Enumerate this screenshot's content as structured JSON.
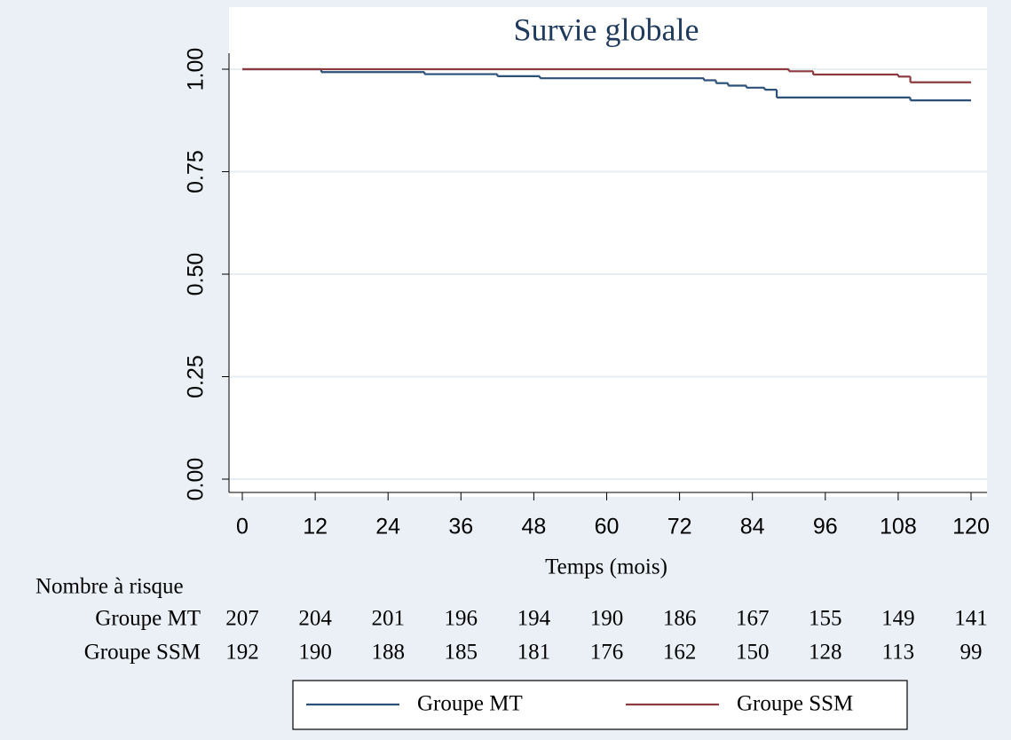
{
  "chart_data": {
    "type": "line",
    "step": true,
    "title": "Survie globale",
    "xlabel": "Temps (mois)",
    "xlim": [
      0,
      120
    ],
    "xticks": [
      0,
      12,
      24,
      36,
      48,
      60,
      72,
      84,
      96,
      108,
      120
    ],
    "ylim": [
      0,
      1
    ],
    "yticks": [
      {
        "value": 0,
        "label": "0.00"
      },
      {
        "value": 0.25,
        "label": "0.25"
      },
      {
        "value": 0.5,
        "label": "0.50"
      },
      {
        "value": 0.75,
        "label": "0.75"
      },
      {
        "value": 1,
        "label": "1.00"
      }
    ],
    "grid": true,
    "series": [
      {
        "name": "Groupe MT",
        "color": "#2c5078",
        "x": [
          0,
          13,
          30,
          42,
          49,
          76,
          78,
          80,
          83,
          86,
          88,
          110,
          120
        ],
        "values": [
          1,
          0.993,
          0.988,
          0.983,
          0.978,
          0.973,
          0.966,
          0.96,
          0.955,
          0.95,
          0.931,
          0.924,
          0.924
        ]
      },
      {
        "name": "Groupe SSM",
        "color": "#8c3a3f",
        "x": [
          0,
          90,
          94,
          108,
          110,
          120
        ],
        "values": [
          1,
          0.995,
          0.987,
          0.982,
          0.968,
          0.968
        ]
      }
    ],
    "risk_table": {
      "title": "Nombre à risque",
      "rows": [
        {
          "label": "Groupe MT",
          "values": [
            207,
            204,
            201,
            196,
            194,
            190,
            186,
            167,
            155,
            149,
            141
          ]
        },
        {
          "label": "Groupe SSM",
          "values": [
            192,
            190,
            188,
            185,
            181,
            176,
            162,
            150,
            128,
            113,
            99
          ]
        }
      ]
    }
  }
}
